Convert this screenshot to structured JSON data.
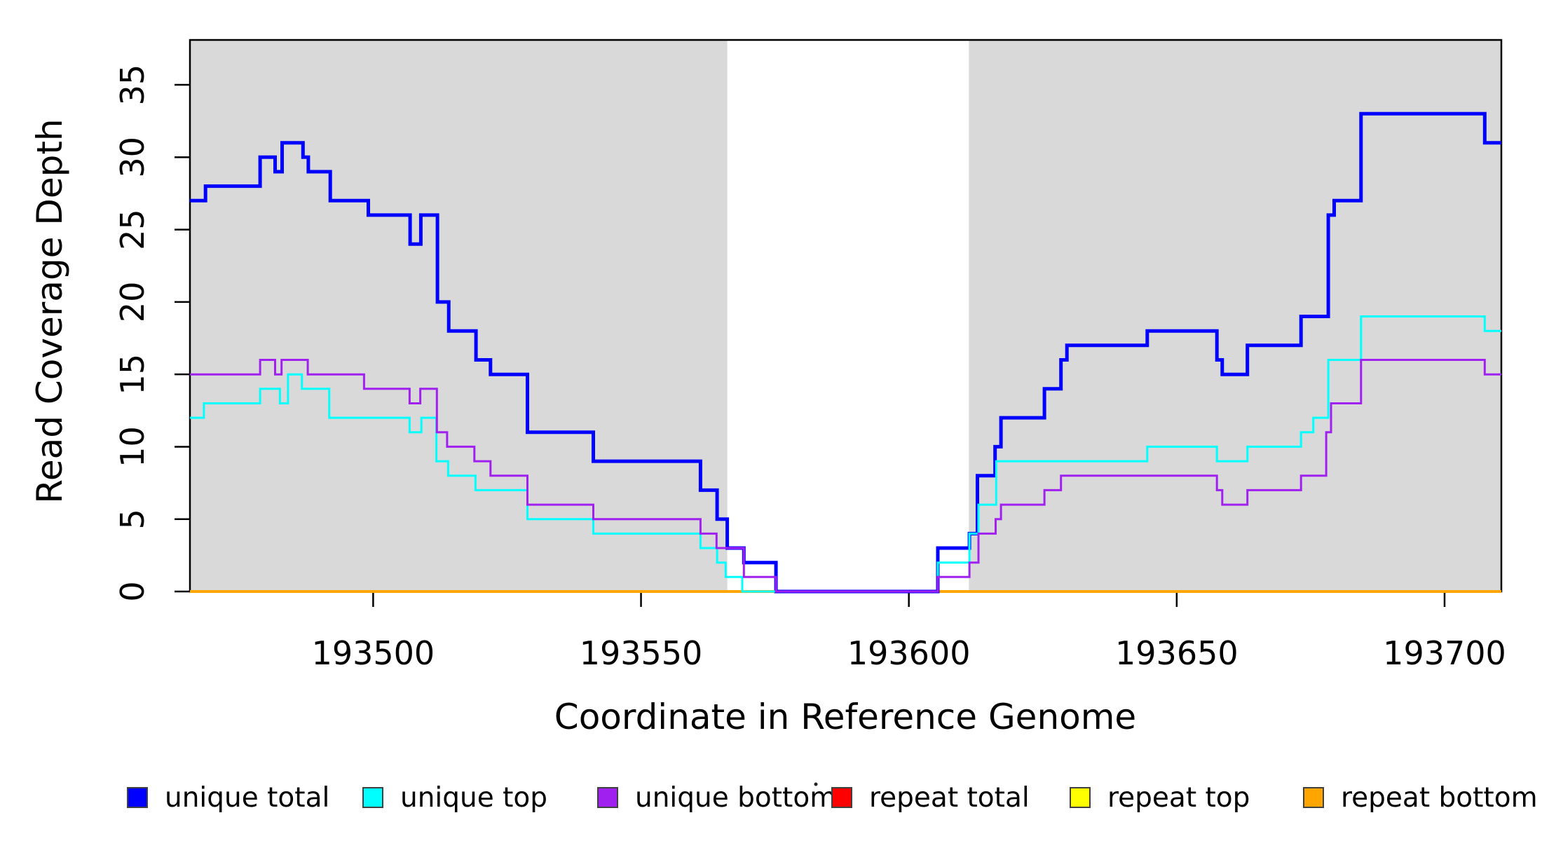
{
  "chart_data": {
    "type": "line",
    "subtype": "step-coverage",
    "title": "",
    "xlabel": "Coordinate in Reference Genome",
    "ylabel": "Read Coverage Depth",
    "xlim": [
      193465.8,
      193710.6
    ],
    "ylim": [
      0,
      38.1
    ],
    "x_ticks": [
      193500,
      193550,
      193600,
      193650,
      193700
    ],
    "y_ticks": [
      0,
      5,
      10,
      15,
      20,
      25,
      30,
      35
    ],
    "grid": false,
    "legend_position": "bottom",
    "axis_color": "#000000",
    "band_color": "#d9d9d9",
    "gap_color": "#ffffff",
    "background_bands": [
      {
        "x0": 193465.8,
        "x1": 193566.1,
        "color": "#d9d9d9"
      },
      {
        "x0": 193611.2,
        "x1": 193710.6,
        "color": "#d9d9d9"
      }
    ],
    "gap_region": {
      "x0": 193566.1,
      "x1": 193611.2,
      "color": "#ffffff"
    },
    "draw_order": [
      "repeat total",
      "repeat top",
      "repeat bottom",
      "unique total",
      "unique top",
      "unique bottom"
    ],
    "series": [
      {
        "name": "unique total",
        "color": "#0000ff",
        "width": 5,
        "steps": [
          [
            193465.8,
            27
          ],
          [
            193468.7,
            28
          ],
          [
            193478.9,
            30
          ],
          [
            193481.7,
            29
          ],
          [
            193483.0,
            31
          ],
          [
            193486.9,
            30
          ],
          [
            193487.9,
            29
          ],
          [
            193492.0,
            27
          ],
          [
            193499.1,
            26
          ],
          [
            193506.9,
            24
          ],
          [
            193508.9,
            26
          ],
          [
            193512.0,
            20
          ],
          [
            193514.1,
            18
          ],
          [
            193519.2,
            16
          ],
          [
            193521.9,
            15
          ],
          [
            193528.8,
            11
          ],
          [
            193541.1,
            9
          ],
          [
            193561.1,
            7
          ],
          [
            193564.2,
            5
          ],
          [
            193566.1,
            3
          ],
          [
            193569.2,
            2
          ],
          [
            193575.2,
            0
          ],
          [
            193605.4,
            3
          ],
          [
            193611.3,
            4
          ],
          [
            193612.8,
            8
          ],
          [
            193616.1,
            10
          ],
          [
            193617.2,
            12
          ],
          [
            193625.3,
            14
          ],
          [
            193628.4,
            16
          ],
          [
            193629.5,
            17
          ],
          [
            193644.5,
            18
          ],
          [
            193657.5,
            16
          ],
          [
            193658.5,
            15
          ],
          [
            193663.2,
            17
          ],
          [
            193673.2,
            19
          ],
          [
            193678.3,
            26
          ],
          [
            193679.4,
            27
          ],
          [
            193684.4,
            33
          ],
          [
            193707.5,
            31
          ]
        ]
      },
      {
        "name": "unique top",
        "color": "#00ffff",
        "width": 3,
        "steps": [
          [
            193465.8,
            12
          ],
          [
            193468.4,
            13
          ],
          [
            193478.9,
            14
          ],
          [
            193482.6,
            13
          ],
          [
            193484.1,
            15
          ],
          [
            193486.7,
            14
          ],
          [
            193491.8,
            12
          ],
          [
            193506.8,
            11
          ],
          [
            193509.0,
            12
          ],
          [
            193511.8,
            9
          ],
          [
            193514.0,
            8
          ],
          [
            193519.1,
            7
          ],
          [
            193528.8,
            5
          ],
          [
            193541.1,
            4
          ],
          [
            193561.1,
            3
          ],
          [
            193564.2,
            2
          ],
          [
            193565.8,
            1
          ],
          [
            193568.9,
            0
          ],
          [
            193605.4,
            2
          ],
          [
            193611.3,
            4
          ],
          [
            193613.0,
            6
          ],
          [
            193616.3,
            9
          ],
          [
            193644.5,
            10
          ],
          [
            193657.5,
            9
          ],
          [
            193663.2,
            10
          ],
          [
            193673.2,
            11
          ],
          [
            193675.5,
            12
          ],
          [
            193678.3,
            16
          ],
          [
            193684.4,
            19
          ],
          [
            193707.5,
            18
          ]
        ]
      },
      {
        "name": "unique bottom",
        "color": "#a020f0",
        "width": 3,
        "steps": [
          [
            193465.8,
            15
          ],
          [
            193478.9,
            16
          ],
          [
            193481.7,
            15
          ],
          [
            193482.9,
            16
          ],
          [
            193487.8,
            15
          ],
          [
            193498.3,
            14
          ],
          [
            193506.8,
            13
          ],
          [
            193508.8,
            14
          ],
          [
            193511.9,
            11
          ],
          [
            193513.8,
            10
          ],
          [
            193518.9,
            9
          ],
          [
            193521.9,
            8
          ],
          [
            193528.8,
            6
          ],
          [
            193541.1,
            5
          ],
          [
            193561.1,
            4
          ],
          [
            193564.1,
            3
          ],
          [
            193569.2,
            1
          ],
          [
            193575.2,
            0
          ],
          [
            193605.4,
            1
          ],
          [
            193611.3,
            2
          ],
          [
            193613.0,
            4
          ],
          [
            193616.2,
            5
          ],
          [
            193617.2,
            6
          ],
          [
            193625.3,
            7
          ],
          [
            193628.4,
            8
          ],
          [
            193657.5,
            7
          ],
          [
            193658.5,
            6
          ],
          [
            193663.2,
            7
          ],
          [
            193673.2,
            8
          ],
          [
            193677.9,
            11
          ],
          [
            193678.8,
            13
          ],
          [
            193684.4,
            16
          ],
          [
            193707.5,
            15
          ]
        ]
      },
      {
        "name": "repeat total",
        "color": "#ff0000",
        "width": 3,
        "steps": [
          [
            193465.8,
            0
          ]
        ]
      },
      {
        "name": "repeat top",
        "color": "#ffff00",
        "width": 3,
        "steps": [
          [
            193465.8,
            0
          ]
        ]
      },
      {
        "name": "repeat bottom",
        "color": "#ffa500",
        "width": 4,
        "steps": [
          [
            193465.8,
            0
          ]
        ]
      }
    ],
    "legend": [
      {
        "label": "unique total",
        "color": "#0000ff"
      },
      {
        "label": "unique top",
        "color": "#00ffff"
      },
      {
        "label": "unique bottom",
        "color": "#a020f0"
      },
      {
        "label": "repeat total",
        "color": "#ff0000"
      },
      {
        "label": "repeat top",
        "color": "#ffff00"
      },
      {
        "label": "repeat bottom",
        "color": "#ffa500"
      }
    ]
  }
}
